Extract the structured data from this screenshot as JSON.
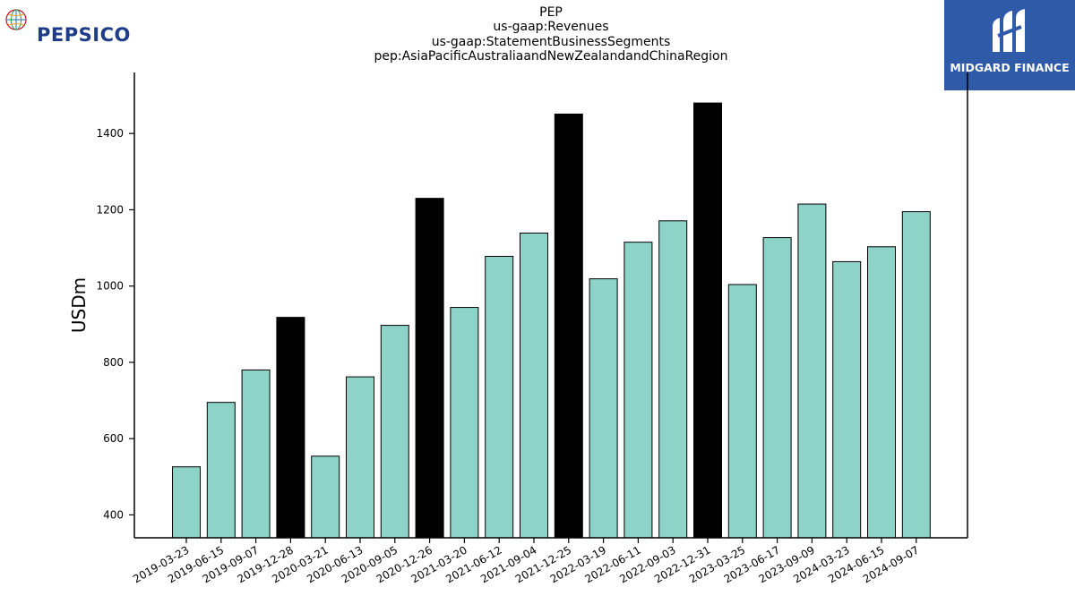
{
  "header": {
    "title_lines": [
      "PEP",
      "us-gaap:Revenues",
      "us-gaap:StatementBusinessSegments",
      "pep:AsiaPacificAustraliaandNewZealandandChinaRegion"
    ]
  },
  "logos": {
    "left": {
      "text": "PEPSICO",
      "color": "#1f3c88"
    },
    "right": {
      "text": "MIDGARD FINANCE",
      "background": "#2f5aa8"
    }
  },
  "chart_data": {
    "type": "bar",
    "ylabel": "USDm",
    "xlabel": "",
    "ylim": [
      340,
      1560
    ],
    "yticks": [
      400,
      600,
      800,
      1000,
      1200,
      1400
    ],
    "colors": {
      "quarter": "#8dd3c7",
      "annual": "#000000",
      "edge": "#000000"
    },
    "categories": [
      "2019-03-23",
      "2019-06-15",
      "2019-09-07",
      "2019-12-28",
      "2020-03-21",
      "2020-06-13",
      "2020-09-05",
      "2020-12-26",
      "2021-03-20",
      "2021-06-12",
      "2021-09-04",
      "2021-12-25",
      "2022-03-19",
      "2022-06-11",
      "2022-09-03",
      "2022-12-31",
      "2023-03-25",
      "2023-06-17",
      "2023-09-09",
      "2024-03-23",
      "2024-06-15",
      "2024-09-07"
    ],
    "values": [
      526,
      695,
      780,
      918,
      554,
      762,
      897,
      1230,
      944,
      1078,
      1139,
      1451,
      1019,
      1115,
      1171,
      1480,
      1004,
      1127,
      1215,
      1064,
      1103,
      1195
    ],
    "highlight": [
      false,
      false,
      false,
      true,
      false,
      false,
      false,
      true,
      false,
      false,
      false,
      true,
      false,
      false,
      false,
      true,
      false,
      false,
      false,
      false,
      false,
      false
    ]
  }
}
